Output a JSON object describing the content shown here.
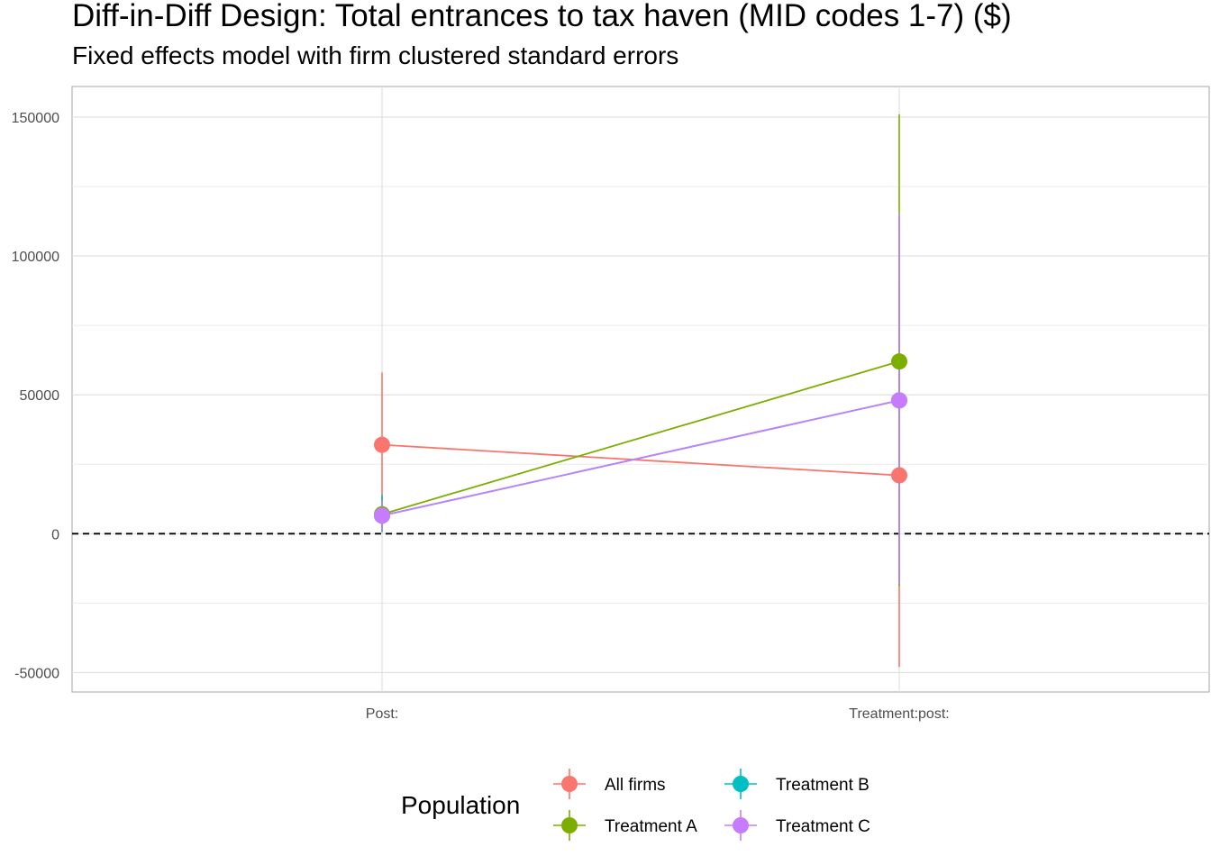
{
  "chart_data": {
    "type": "scatter",
    "title": "Diff-in-Diff Design: Total entrances to tax haven (MID codes 1-7)  ($)",
    "subtitle": "Fixed effects model with firm clustered standard errors",
    "categories": [
      "Post:",
      "Treatment:post:"
    ],
    "ylim": [
      -57000,
      161000
    ],
    "yticks": [
      -50000,
      0,
      50000,
      100000,
      150000
    ],
    "reference_line": {
      "y": 0,
      "style": "dashed"
    },
    "grid": true,
    "legend": {
      "title": "Population",
      "position": "bottom"
    },
    "series": [
      {
        "name": "All firms",
        "color": "#F8766D",
        "estimates": [
          32000,
          21000
        ],
        "ci_low": [
          6500,
          -48000
        ],
        "ci_high": [
          58000,
          90000
        ]
      },
      {
        "name": "Treatment A",
        "color": "#7CAE00",
        "estimates": [
          7000,
          62000
        ],
        "ci_low": [
          1000,
          -19000
        ],
        "ci_high": [
          13000,
          151000
        ]
      },
      {
        "name": "Treatment B",
        "color": "#00BFC4",
        "estimates": [
          6500,
          48000
        ],
        "ci_low": [
          500,
          -18000
        ],
        "ci_high": [
          14000,
          114000
        ]
      },
      {
        "name": "Treatment C",
        "color": "#C77CFF",
        "estimates": [
          6500,
          48000
        ],
        "ci_low": [
          1000,
          -18000
        ],
        "ci_high": [
          12000,
          115000
        ]
      }
    ]
  }
}
